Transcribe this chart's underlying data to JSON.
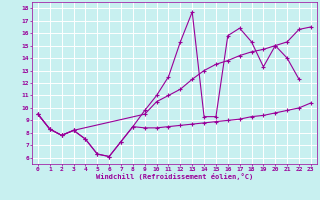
{
  "xlabel": "Windchill (Refroidissement éolien,°C)",
  "bg_color": "#c8f0f0",
  "line_color": "#990099",
  "grid_color": "#ffffff",
  "xlim": [
    -0.5,
    23.5
  ],
  "ylim": [
    5.5,
    18.5
  ],
  "xticks": [
    0,
    1,
    2,
    3,
    4,
    5,
    6,
    7,
    8,
    9,
    10,
    11,
    12,
    13,
    14,
    15,
    16,
    17,
    18,
    19,
    20,
    21,
    22,
    23
  ],
  "yticks": [
    6,
    7,
    8,
    9,
    10,
    11,
    12,
    13,
    14,
    15,
    16,
    17,
    18
  ],
  "line1_x": [
    0,
    1,
    2,
    3,
    4,
    5,
    6,
    7,
    8,
    9,
    10,
    11,
    12,
    13,
    14,
    15,
    16,
    17,
    18,
    19,
    20,
    21,
    22,
    23
  ],
  "line1_y": [
    9.5,
    8.3,
    7.8,
    8.2,
    7.5,
    6.3,
    6.1,
    7.3,
    8.5,
    8.4,
    8.4,
    8.5,
    8.6,
    8.7,
    8.8,
    8.9,
    9.0,
    9.1,
    9.3,
    9.4,
    9.6,
    9.8,
    10.0,
    10.4
  ],
  "line2_x": [
    0,
    1,
    2,
    3,
    4,
    5,
    6,
    7,
    8,
    9,
    10,
    11,
    12,
    13,
    14,
    15,
    16,
    17,
    18,
    19,
    20,
    21,
    22
  ],
  "line2_y": [
    9.5,
    8.3,
    7.8,
    8.2,
    7.5,
    6.3,
    6.1,
    7.3,
    8.5,
    9.8,
    11.0,
    12.5,
    15.3,
    17.7,
    9.3,
    9.3,
    15.8,
    16.4,
    15.3,
    13.3,
    15.0,
    14.0,
    12.3
  ],
  "line3_x": [
    0,
    1,
    2,
    3,
    9,
    10,
    11,
    12,
    13,
    14,
    15,
    16,
    17,
    18,
    19,
    20,
    21,
    22,
    23
  ],
  "line3_y": [
    9.5,
    8.3,
    7.8,
    8.2,
    9.5,
    10.5,
    11.0,
    11.5,
    12.3,
    13.0,
    13.5,
    13.8,
    14.2,
    14.5,
    14.7,
    15.0,
    15.3,
    16.3,
    16.5
  ]
}
